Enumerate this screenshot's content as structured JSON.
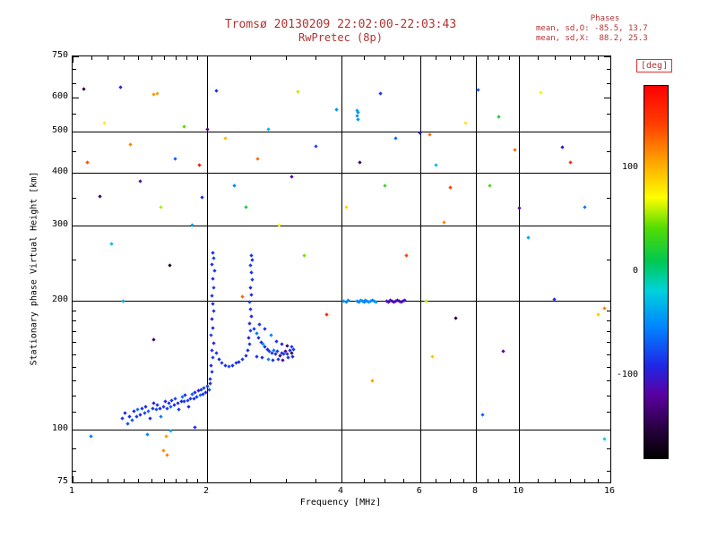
{
  "title": "Tromsø 20130209 22:02:00-22:03:43",
  "subtitle": "RwPretec (8p)",
  "stats": {
    "header": "Phases",
    "line_o": "mean, sd,O: -85.5, 13.7",
    "line_x": "mean, sd,X:  88.2, 25.3"
  },
  "colors": {
    "annotation": "#b43232",
    "axis": "#000000",
    "background": "#ffffff"
  },
  "chart_data": {
    "type": "scatter",
    "title": "Tromsø 20130209 22:02:00-22:03:43",
    "subtitle": "RwPretec (8p)",
    "xlabel": "Frequency [MHz]",
    "ylabel": "Stationary phase Virtual Height [km]",
    "x_scale": "log",
    "y_scale": "log",
    "xlim": [
      1,
      16
    ],
    "ylim": [
      75,
      750
    ],
    "x_ticks": [
      1,
      2,
      4,
      6,
      8,
      10,
      16
    ],
    "x_minor_ticks": [
      1.1,
      1.2,
      1.3,
      1.4,
      1.5,
      1.6,
      1.7,
      1.8,
      1.9,
      2.5,
      3,
      3.5,
      4.5,
      5,
      5.5,
      6.5,
      7,
      7.5,
      8.5,
      9,
      9.5,
      11,
      12,
      13,
      14,
      15
    ],
    "x_gridlines": [
      2,
      4,
      6,
      8,
      10
    ],
    "y_ticks": [
      75,
      100,
      200,
      300,
      400,
      500,
      600,
      750
    ],
    "y_minor_ticks": [
      80,
      90,
      110,
      120,
      130,
      140,
      150,
      160,
      170,
      180,
      190,
      250,
      350,
      450,
      550,
      650,
      700
    ],
    "y_gridlines": [
      100,
      200,
      300,
      400,
      500
    ],
    "grid": true,
    "colorbar": {
      "label": "[deg]",
      "units": "deg",
      "ticks": [
        100,
        0,
        -100
      ],
      "range": [
        -180,
        180
      ],
      "stops": [
        [
          0.0,
          "#000000"
        ],
        [
          0.08,
          "#280040"
        ],
        [
          0.17,
          "#5a00a0"
        ],
        [
          0.25,
          "#1e28e6"
        ],
        [
          0.35,
          "#0082ff"
        ],
        [
          0.45,
          "#00d2dc"
        ],
        [
          0.53,
          "#00c850"
        ],
        [
          0.62,
          "#55dc00"
        ],
        [
          0.7,
          "#ffff00"
        ],
        [
          0.8,
          "#ffa000"
        ],
        [
          0.9,
          "#ff3c00"
        ],
        [
          1.0,
          "#ff0000"
        ]
      ]
    },
    "point_format": [
      "frequency_MHz",
      "virtual_height_km",
      "phase_deg"
    ],
    "points": [
      [
        1.29,
        106,
        -84
      ],
      [
        1.31,
        109,
        -92
      ],
      [
        1.33,
        103,
        -76
      ],
      [
        1.34,
        107,
        -88
      ],
      [
        1.36,
        105,
        -70
      ],
      [
        1.37,
        110,
        -95
      ],
      [
        1.39,
        107,
        -82
      ],
      [
        1.4,
        111,
        -60
      ],
      [
        1.42,
        108,
        -90
      ],
      [
        1.43,
        112,
        -86
      ],
      [
        1.45,
        109,
        -78
      ],
      [
        1.46,
        113,
        -94
      ],
      [
        1.48,
        110,
        -66
      ],
      [
        1.49,
        106,
        -88
      ],
      [
        1.51,
        112,
        -84
      ],
      [
        1.52,
        115,
        -98
      ],
      [
        1.54,
        111,
        -74
      ],
      [
        1.55,
        114,
        -86
      ],
      [
        1.57,
        112,
        -92
      ],
      [
        1.58,
        107,
        -58
      ],
      [
        1.6,
        113,
        -85
      ],
      [
        1.61,
        116,
        -90
      ],
      [
        1.63,
        112,
        -80
      ],
      [
        1.64,
        115,
        -96
      ],
      [
        1.66,
        113,
        -68
      ],
      [
        1.67,
        117,
        -86
      ],
      [
        1.69,
        114,
        -91
      ],
      [
        1.7,
        118,
        -77
      ],
      [
        1.72,
        115,
        -89
      ],
      [
        1.73,
        111,
        -84
      ],
      [
        1.75,
        116,
        -93
      ],
      [
        1.76,
        119,
        -62
      ],
      [
        1.78,
        116,
        -87
      ],
      [
        1.79,
        120,
        -90
      ],
      [
        1.81,
        117,
        -79
      ],
      [
        1.82,
        113,
        -95
      ],
      [
        1.84,
        118,
        -85
      ],
      [
        1.85,
        121,
        -72
      ],
      [
        1.87,
        118,
        -88
      ],
      [
        1.88,
        122,
        -92
      ],
      [
        1.9,
        119,
        -83
      ],
      [
        1.91,
        123,
        -97
      ],
      [
        1.93,
        120,
        -64
      ],
      [
        1.94,
        124,
        -86
      ],
      [
        1.96,
        121,
        -90
      ],
      [
        1.97,
        125,
        -81
      ],
      [
        1.99,
        122,
        -94
      ],
      [
        2.0,
        126,
        -87
      ],
      [
        2.02,
        124,
        -76
      ],
      [
        2.03,
        128,
        -90
      ],
      [
        1.47,
        97,
        -50
      ],
      [
        1.62,
        96,
        110
      ],
      [
        1.66,
        99,
        -30
      ],
      [
        1.88,
        101,
        -88
      ],
      [
        1.6,
        89,
        115
      ],
      [
        1.63,
        87,
        120
      ],
      [
        1.52,
        162,
        -135
      ],
      [
        2.03,
        131,
        -88
      ],
      [
        2.05,
        136,
        -82
      ],
      [
        2.04,
        141,
        -90
      ],
      [
        2.06,
        147,
        -78
      ],
      [
        2.05,
        153,
        -86
      ],
      [
        2.07,
        159,
        -92
      ],
      [
        2.04,
        166,
        -80
      ],
      [
        2.06,
        173,
        -88
      ],
      [
        2.05,
        181,
        -95
      ],
      [
        2.07,
        189,
        -84
      ],
      [
        2.06,
        197,
        -90
      ],
      [
        2.05,
        206,
        -86
      ],
      [
        2.07,
        215,
        -79
      ],
      [
        2.06,
        225,
        -91
      ],
      [
        2.08,
        235,
        -85
      ],
      [
        2.05,
        244,
        -88
      ],
      [
        2.07,
        252,
        -82
      ],
      [
        2.06,
        259,
        -90
      ],
      [
        2.1,
        151,
        -86
      ],
      [
        2.13,
        146,
        -90
      ],
      [
        2.16,
        143,
        -82
      ],
      [
        2.2,
        141,
        -88
      ],
      [
        2.24,
        140,
        -76
      ],
      [
        2.28,
        141,
        -92
      ],
      [
        2.32,
        143,
        -85
      ],
      [
        2.36,
        144,
        -89
      ],
      [
        2.4,
        146,
        -83
      ],
      [
        2.44,
        149,
        -87
      ],
      [
        2.47,
        153,
        -88
      ],
      [
        2.49,
        158,
        -84
      ],
      [
        2.48,
        164,
        -92
      ],
      [
        2.5,
        170,
        -80
      ],
      [
        2.49,
        177,
        -87
      ],
      [
        2.51,
        184,
        -90
      ],
      [
        2.5,
        191,
        -85
      ],
      [
        2.49,
        199,
        -78
      ],
      [
        2.51,
        207,
        -89
      ],
      [
        2.5,
        215,
        -93
      ],
      [
        2.52,
        224,
        -84
      ],
      [
        2.51,
        233,
        -88
      ],
      [
        2.5,
        242,
        -82
      ],
      [
        2.52,
        250,
        -90
      ],
      [
        2.51,
        256,
        -86
      ],
      [
        2.55,
        172,
        -84
      ],
      [
        2.58,
        168,
        -58
      ],
      [
        2.61,
        164,
        -90
      ],
      [
        2.64,
        160,
        -86
      ],
      [
        2.67,
        158,
        -48
      ],
      [
        2.7,
        156,
        -88
      ],
      [
        2.73,
        154,
        -92
      ],
      [
        2.76,
        152,
        -80
      ],
      [
        2.79,
        151,
        -86
      ],
      [
        2.82,
        153,
        -62
      ],
      [
        2.85,
        150,
        -90
      ],
      [
        2.88,
        152,
        -84
      ],
      [
        2.91,
        149,
        -132
      ],
      [
        2.94,
        151,
        -88
      ],
      [
        2.97,
        150,
        -80
      ],
      [
        3.0,
        152,
        -125
      ],
      [
        3.03,
        150,
        -86
      ],
      [
        3.06,
        153,
        -90
      ],
      [
        3.09,
        151,
        -140
      ],
      [
        3.12,
        154,
        -84
      ],
      [
        2.59,
        148,
        -86
      ],
      [
        2.66,
        147,
        -90
      ],
      [
        2.74,
        146,
        -55
      ],
      [
        2.81,
        145,
        -88
      ],
      [
        2.89,
        146,
        -82
      ],
      [
        2.96,
        145,
        -120
      ],
      [
        3.04,
        147,
        -86
      ],
      [
        3.11,
        148,
        -90
      ],
      [
        2.62,
        176,
        -84
      ],
      [
        2.7,
        172,
        -88
      ],
      [
        2.78,
        166,
        -50
      ],
      [
        2.86,
        161,
        -86
      ],
      [
        2.94,
        158,
        -90
      ],
      [
        3.02,
        157,
        -135
      ],
      [
        3.1,
        156,
        -82
      ],
      [
        4.05,
        200,
        -46
      ],
      [
        4.1,
        199,
        -52
      ],
      [
        4.15,
        201,
        -44
      ],
      [
        4.33,
        200,
        -48
      ],
      [
        4.37,
        199,
        -55
      ],
      [
        4.41,
        201,
        -42
      ],
      [
        4.45,
        200,
        -50
      ],
      [
        4.49,
        199,
        -58
      ],
      [
        4.53,
        201,
        -45
      ],
      [
        4.57,
        200,
        -52
      ],
      [
        4.61,
        199,
        -48
      ],
      [
        4.65,
        200,
        -44
      ],
      [
        4.69,
        201,
        -56
      ],
      [
        4.73,
        200,
        -50
      ],
      [
        4.77,
        199,
        -46
      ],
      [
        5.05,
        200,
        -108
      ],
      [
        5.1,
        199,
        -115
      ],
      [
        5.15,
        201,
        -104
      ],
      [
        5.2,
        200,
        -112
      ],
      [
        5.25,
        199,
        -118
      ],
      [
        5.3,
        200,
        -106
      ],
      [
        5.35,
        201,
        -110
      ],
      [
        5.4,
        200,
        -116
      ],
      [
        5.45,
        199,
        -108
      ],
      [
        5.5,
        200,
        -112
      ],
      [
        5.55,
        201,
        -105
      ],
      [
        4.33,
        545,
        -45
      ],
      [
        4.36,
        553,
        -50
      ],
      [
        4.34,
        560,
        -42
      ],
      [
        4.35,
        532,
        -48
      ],
      [
        1.06,
        628,
        -148
      ],
      [
        1.28,
        636,
        -95
      ],
      [
        1.55,
        613,
        108
      ],
      [
        1.08,
        422,
        138
      ],
      [
        1.1,
        96,
        -58
      ],
      [
        1.15,
        352,
        -142
      ],
      [
        1.18,
        522,
        78
      ],
      [
        1.22,
        272,
        -28
      ],
      [
        1.35,
        466,
        118
      ],
      [
        1.42,
        382,
        -108
      ],
      [
        1.52,
        610,
        112
      ],
      [
        1.58,
        332,
        58
      ],
      [
        1.65,
        242,
        -158
      ],
      [
        1.7,
        432,
        -68
      ],
      [
        1.78,
        512,
        42
      ],
      [
        1.85,
        302,
        -42
      ],
      [
        1.92,
        416,
        168
      ],
      [
        2.0,
        506,
        -128
      ],
      [
        2.1,
        622,
        -88
      ],
      [
        2.2,
        482,
        98
      ],
      [
        2.3,
        372,
        -52
      ],
      [
        2.45,
        332,
        18
      ],
      [
        2.6,
        432,
        128
      ],
      [
        2.75,
        506,
        -32
      ],
      [
        2.9,
        302,
        72
      ],
      [
        3.1,
        392,
        -118
      ],
      [
        3.3,
        256,
        48
      ],
      [
        3.5,
        462,
        -78
      ],
      [
        3.7,
        186,
        158
      ],
      [
        3.9,
        562,
        -48
      ],
      [
        4.1,
        332,
        88
      ],
      [
        4.4,
        422,
        -138
      ],
      [
        4.7,
        130,
        108
      ],
      [
        5.0,
        372,
        32
      ],
      [
        5.3,
        482,
        -62
      ],
      [
        5.6,
        256,
        142
      ],
      [
        6.0,
        496,
        -98
      ],
      [
        6.2,
        200,
        58
      ],
      [
        6.3,
        490,
        125
      ],
      [
        6.5,
        416,
        -28
      ],
      [
        6.8,
        306,
        118
      ],
      [
        7.2,
        182,
        -148
      ],
      [
        7.6,
        522,
        82
      ],
      [
        8.1,
        626,
        -72
      ],
      [
        8.6,
        372,
        38
      ],
      [
        9.2,
        152,
        -118
      ],
      [
        9.8,
        452,
        128
      ],
      [
        10.5,
        282,
        -38
      ],
      [
        11.2,
        616,
        68
      ],
      [
        12.0,
        202,
        -88
      ],
      [
        13.0,
        422,
        152
      ],
      [
        14.0,
        332,
        -58
      ],
      [
        15.0,
        186,
        92
      ],
      [
        15.5,
        95,
        -18
      ],
      [
        15.5,
        192,
        118
      ],
      [
        1.95,
        350,
        -88
      ],
      [
        2.4,
        205,
        130
      ],
      [
        1.3,
        200,
        -40
      ],
      [
        6.4,
        148,
        95
      ],
      [
        8.3,
        108,
        -65
      ],
      [
        9.0,
        540,
        20
      ],
      [
        12.5,
        460,
        -105
      ],
      [
        3.2,
        620,
        60
      ],
      [
        4.9,
        615,
        -85
      ],
      [
        7.0,
        370,
        145
      ],
      [
        10.0,
        330,
        -125
      ]
    ]
  }
}
